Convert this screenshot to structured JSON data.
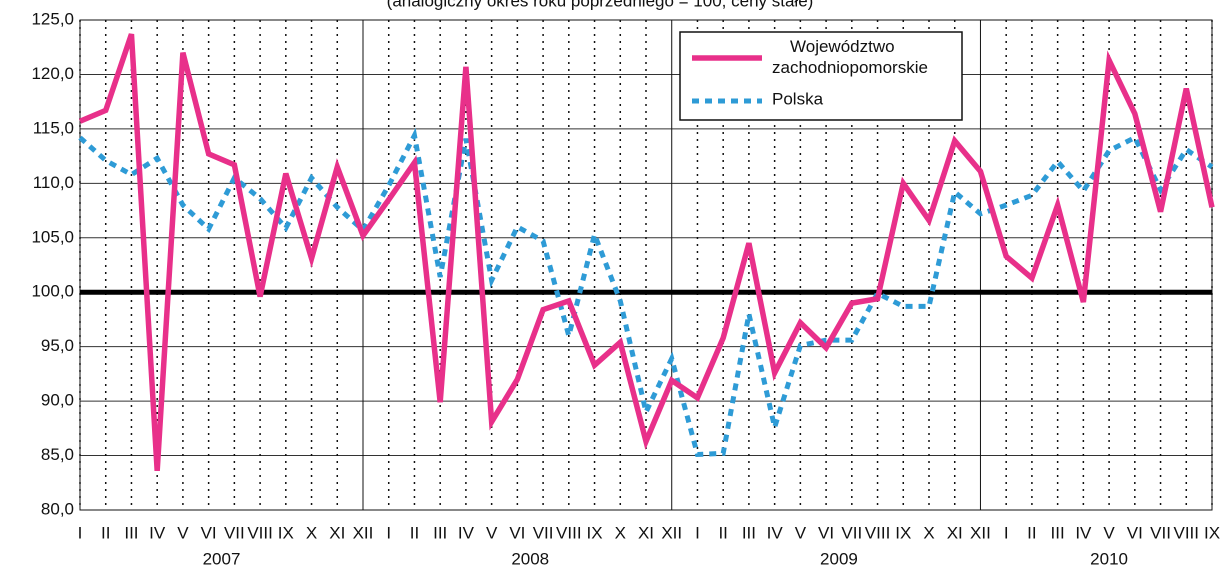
{
  "chart_data": {
    "type": "line",
    "title": "(analogiczny okres roku poprzedniego = 100; ceny stałe)",
    "categories": [
      "I",
      "II",
      "III",
      "IV",
      "V",
      "VI",
      "VII",
      "VIII",
      "IX",
      "X",
      "XI",
      "XII",
      "I",
      "II",
      "III",
      "IV",
      "V",
      "VI",
      "VII",
      "VIII",
      "IX",
      "X",
      "XI",
      "XII",
      "I",
      "II",
      "III",
      "IV",
      "V",
      "VI",
      "VII",
      "VIII",
      "IX",
      "X",
      "XI",
      "XII",
      "I",
      "II",
      "III",
      "IV",
      "V",
      "VI",
      "VII",
      "VIII",
      "IX"
    ],
    "years": [
      "2007",
      "2008",
      "2009",
      "2010"
    ],
    "series": [
      {
        "name": "Województwo zachodniopomorskie",
        "color": "#e8308a",
        "style": "solid",
        "values": [
          115.7,
          116.7,
          123.7,
          83.6,
          122.0,
          112.7,
          111.7,
          99.6,
          110.9,
          103.1,
          111.5,
          105.2,
          108.5,
          111.9,
          89.9,
          120.7,
          88.1,
          92.0,
          98.4,
          99.2,
          93.3,
          95.4,
          86.3,
          91.9,
          90.3,
          95.8,
          104.5,
          92.6,
          97.2,
          94.9,
          99.0,
          99.4,
          110.0,
          106.6,
          113.9,
          111.1,
          103.3,
          101.3,
          108.0,
          99.1,
          121.3,
          116.4,
          107.4,
          118.7,
          107.8
        ]
      },
      {
        "name": "Polska",
        "color": "#2e9bd6",
        "style": "dashed",
        "values": [
          114.2,
          112.1,
          110.8,
          112.3,
          108.0,
          105.8,
          110.5,
          108.6,
          105.9,
          110.5,
          107.8,
          105.7,
          109.8,
          114.4,
          101.4,
          114.1,
          101.1,
          106.0,
          104.7,
          96.0,
          105.3,
          99.2,
          89.0,
          93.9,
          85.1,
          85.2,
          98.0,
          87.6,
          95.1,
          95.6,
          95.6,
          99.9,
          98.7,
          98.7,
          109.2,
          107.2,
          108.0,
          108.9,
          112.0,
          109.3,
          113.0,
          114.2,
          109.4,
          113.1,
          111.5
        ]
      }
    ],
    "ylim": [
      80,
      125
    ],
    "yticks": [
      {
        "value": 80,
        "label": "80,0"
      },
      {
        "value": 85,
        "label": "85,0"
      },
      {
        "value": 90,
        "label": "90,0"
      },
      {
        "value": 95,
        "label": "95,0"
      },
      {
        "value": 100,
        "label": "100,0"
      },
      {
        "value": 105,
        "label": "105,0"
      },
      {
        "value": 110,
        "label": "110,0"
      },
      {
        "value": 115,
        "label": "115,0"
      },
      {
        "value": 120,
        "label": "120,0"
      },
      {
        "value": 125,
        "label": "125,0"
      }
    ],
    "reference_line": 100,
    "grid": true,
    "legend": "upper center"
  }
}
